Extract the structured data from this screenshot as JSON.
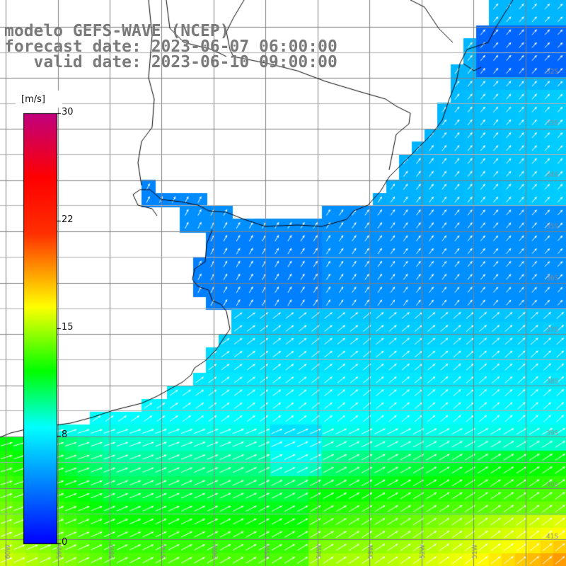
{
  "header": {
    "model_line": "modelo GEFS-WAVE (NCEP)",
    "forecast_line": "forecast date: 2023-06-07 06:00:00",
    "valid_line": "   valid date: 2023-06-10 09:00:00"
  },
  "colorbar": {
    "unit": "[m/s]",
    "min": 0,
    "max": 30,
    "ticks": [
      "30",
      "22",
      "15",
      "8",
      "0"
    ],
    "tick_values": [
      30,
      22,
      15,
      8,
      0
    ],
    "colors": [
      "#0000ff",
      "#00ffff",
      "#00ff00",
      "#ffff00",
      "#ff0000",
      "#c00080"
    ]
  },
  "map": {
    "region": "Rio de la Plata / South Atlantic",
    "longitude_labels": [
      "60W",
      "59W",
      "58W",
      "57W",
      "56W",
      "55W",
      "54W",
      "53W",
      "52W",
      "51W"
    ],
    "latitude_labels": [
      "32S",
      "33S",
      "34S",
      "35S",
      "36S",
      "37S",
      "38S",
      "39S",
      "40S",
      "41S"
    ],
    "field_description": "wind speed shaded with white direction arrows"
  }
}
